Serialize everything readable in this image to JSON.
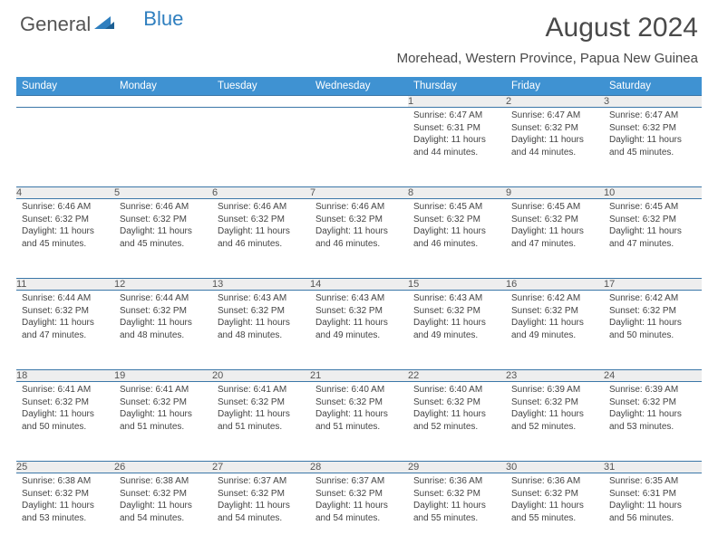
{
  "logo": {
    "general": "General",
    "blue": "Blue"
  },
  "title": "August 2024",
  "location": "Morehead, Western Province, Papua New Guinea",
  "colors": {
    "header_bg": "#3f92d2",
    "header_text": "#ffffff",
    "day_num_bg": "#eeeeee",
    "border": "#3b77a8",
    "body_text": "#444444",
    "title_text": "#4a4a4a"
  },
  "weekdays": [
    "Sunday",
    "Monday",
    "Tuesday",
    "Wednesday",
    "Thursday",
    "Friday",
    "Saturday"
  ],
  "weeks": [
    [
      null,
      null,
      null,
      null,
      {
        "n": "1",
        "sr": "6:47 AM",
        "ss": "6:31 PM",
        "dl": "11 hours and 44 minutes."
      },
      {
        "n": "2",
        "sr": "6:47 AM",
        "ss": "6:32 PM",
        "dl": "11 hours and 44 minutes."
      },
      {
        "n": "3",
        "sr": "6:47 AM",
        "ss": "6:32 PM",
        "dl": "11 hours and 45 minutes."
      }
    ],
    [
      {
        "n": "4",
        "sr": "6:46 AM",
        "ss": "6:32 PM",
        "dl": "11 hours and 45 minutes."
      },
      {
        "n": "5",
        "sr": "6:46 AM",
        "ss": "6:32 PM",
        "dl": "11 hours and 45 minutes."
      },
      {
        "n": "6",
        "sr": "6:46 AM",
        "ss": "6:32 PM",
        "dl": "11 hours and 46 minutes."
      },
      {
        "n": "7",
        "sr": "6:46 AM",
        "ss": "6:32 PM",
        "dl": "11 hours and 46 minutes."
      },
      {
        "n": "8",
        "sr": "6:45 AM",
        "ss": "6:32 PM",
        "dl": "11 hours and 46 minutes."
      },
      {
        "n": "9",
        "sr": "6:45 AM",
        "ss": "6:32 PM",
        "dl": "11 hours and 47 minutes."
      },
      {
        "n": "10",
        "sr": "6:45 AM",
        "ss": "6:32 PM",
        "dl": "11 hours and 47 minutes."
      }
    ],
    [
      {
        "n": "11",
        "sr": "6:44 AM",
        "ss": "6:32 PM",
        "dl": "11 hours and 47 minutes."
      },
      {
        "n": "12",
        "sr": "6:44 AM",
        "ss": "6:32 PM",
        "dl": "11 hours and 48 minutes."
      },
      {
        "n": "13",
        "sr": "6:43 AM",
        "ss": "6:32 PM",
        "dl": "11 hours and 48 minutes."
      },
      {
        "n": "14",
        "sr": "6:43 AM",
        "ss": "6:32 PM",
        "dl": "11 hours and 49 minutes."
      },
      {
        "n": "15",
        "sr": "6:43 AM",
        "ss": "6:32 PM",
        "dl": "11 hours and 49 minutes."
      },
      {
        "n": "16",
        "sr": "6:42 AM",
        "ss": "6:32 PM",
        "dl": "11 hours and 49 minutes."
      },
      {
        "n": "17",
        "sr": "6:42 AM",
        "ss": "6:32 PM",
        "dl": "11 hours and 50 minutes."
      }
    ],
    [
      {
        "n": "18",
        "sr": "6:41 AM",
        "ss": "6:32 PM",
        "dl": "11 hours and 50 minutes."
      },
      {
        "n": "19",
        "sr": "6:41 AM",
        "ss": "6:32 PM",
        "dl": "11 hours and 51 minutes."
      },
      {
        "n": "20",
        "sr": "6:41 AM",
        "ss": "6:32 PM",
        "dl": "11 hours and 51 minutes."
      },
      {
        "n": "21",
        "sr": "6:40 AM",
        "ss": "6:32 PM",
        "dl": "11 hours and 51 minutes."
      },
      {
        "n": "22",
        "sr": "6:40 AM",
        "ss": "6:32 PM",
        "dl": "11 hours and 52 minutes."
      },
      {
        "n": "23",
        "sr": "6:39 AM",
        "ss": "6:32 PM",
        "dl": "11 hours and 52 minutes."
      },
      {
        "n": "24",
        "sr": "6:39 AM",
        "ss": "6:32 PM",
        "dl": "11 hours and 53 minutes."
      }
    ],
    [
      {
        "n": "25",
        "sr": "6:38 AM",
        "ss": "6:32 PM",
        "dl": "11 hours and 53 minutes."
      },
      {
        "n": "26",
        "sr": "6:38 AM",
        "ss": "6:32 PM",
        "dl": "11 hours and 54 minutes."
      },
      {
        "n": "27",
        "sr": "6:37 AM",
        "ss": "6:32 PM",
        "dl": "11 hours and 54 minutes."
      },
      {
        "n": "28",
        "sr": "6:37 AM",
        "ss": "6:32 PM",
        "dl": "11 hours and 54 minutes."
      },
      {
        "n": "29",
        "sr": "6:36 AM",
        "ss": "6:32 PM",
        "dl": "11 hours and 55 minutes."
      },
      {
        "n": "30",
        "sr": "6:36 AM",
        "ss": "6:32 PM",
        "dl": "11 hours and 55 minutes."
      },
      {
        "n": "31",
        "sr": "6:35 AM",
        "ss": "6:31 PM",
        "dl": "11 hours and 56 minutes."
      }
    ]
  ],
  "labels": {
    "sunrise": "Sunrise:",
    "sunset": "Sunset:",
    "daylight": "Daylight:"
  }
}
